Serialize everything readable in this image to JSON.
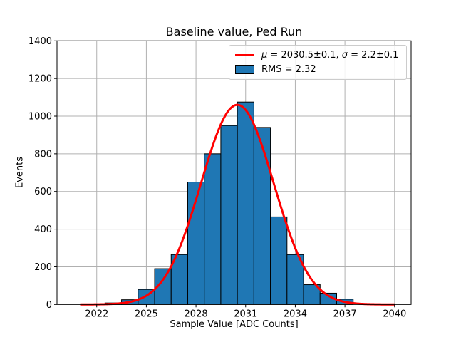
{
  "chart_data": {
    "type": "histogram",
    "title": "Baseline value, Ped Run",
    "xlabel": "Sample Value [ADC Counts]",
    "ylabel": "Events",
    "xlim": [
      2019.6,
      2041.0
    ],
    "ylim": [
      0,
      1400
    ],
    "xticks": [
      2022,
      2025,
      2028,
      2031,
      2034,
      2037,
      2040
    ],
    "yticks": [
      0,
      200,
      400,
      600,
      800,
      1000,
      1200,
      1400
    ],
    "grid": true,
    "legend_position": "upper right",
    "bins": {
      "width": 1,
      "centers": [
        2022,
        2023,
        2024,
        2025,
        2026,
        2027,
        2028,
        2029,
        2030,
        2031,
        2032,
        2033,
        2034,
        2035,
        2036,
        2037
      ],
      "counts": [
        3,
        8,
        25,
        80,
        190,
        265,
        650,
        800,
        950,
        1075,
        940,
        465,
        265,
        105,
        60,
        28
      ]
    },
    "fit_curve": {
      "shape": "gaussian",
      "amplitude": 1060,
      "mu": 2030.5,
      "sigma": 2.2,
      "x_range": [
        2021,
        2040
      ]
    },
    "colors": {
      "bar_fill": "#1f77b4",
      "bar_edge": "#000000",
      "fit_line": "#ff0000",
      "grid": "#b0b0b0",
      "spine": "#000000",
      "legend_border": "#cccccc"
    },
    "legend": {
      "fit_label": {
        "mu_symbol": "μ",
        "mu_text": " = 2030.5±0.1, ",
        "sigma_symbol": "σ",
        "sigma_text": " = 2.2±0.1"
      },
      "hist_label": "RMS = 2.32"
    }
  }
}
